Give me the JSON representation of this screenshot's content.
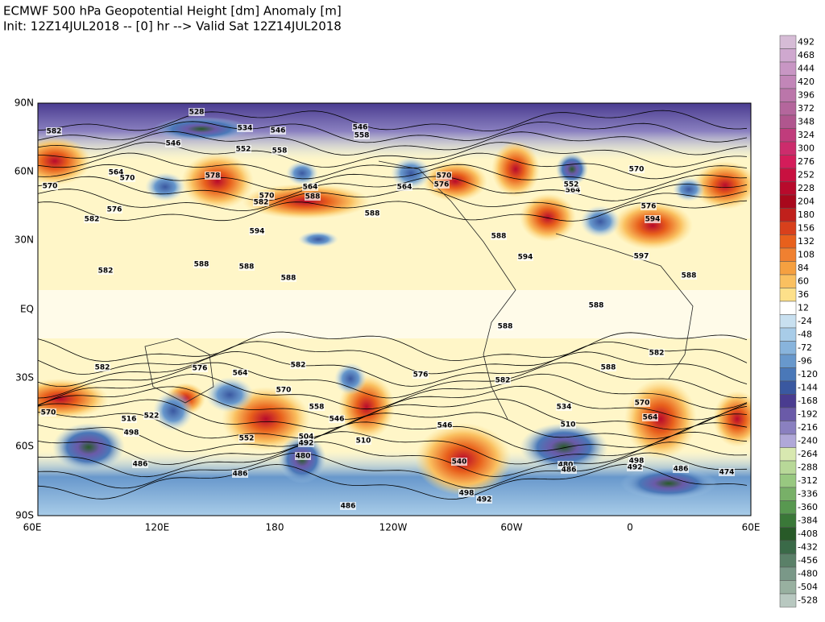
{
  "header": {
    "title": "ECMWF 500 hPa Geopotential Height [dm] Anomaly [m]",
    "subtitle": "Init: 12Z14JUL2018 -- [0] hr --> Valid Sat 12Z14JUL2018"
  },
  "map": {
    "lon_labels": [
      "60E",
      "120E",
      "180",
      "120W",
      "60W",
      "0",
      "60E"
    ],
    "lat_labels": [
      "90N",
      "60N",
      "30N",
      "EQ",
      "30S",
      "60S",
      "90S"
    ],
    "contour_labels": [
      528,
      534,
      546,
      546,
      558,
      552,
      558,
      546,
      564,
      570,
      582,
      570,
      576,
      582,
      578,
      570,
      582,
      588,
      588,
      594,
      564,
      570,
      564,
      576,
      588,
      594,
      588,
      588,
      582,
      588,
      588,
      588,
      582,
      582,
      576,
      582,
      588,
      582,
      576,
      564,
      570,
      558,
      546,
      552,
      546,
      540,
      534,
      510,
      570,
      564,
      498,
      492,
      486,
      474,
      486,
      492,
      498,
      486,
      480,
      504,
      492,
      510,
      516,
      498,
      486,
      522,
      570,
      480,
      486,
      564,
      552,
      570,
      588,
      597,
      594,
      576
    ]
  },
  "colorbar": {
    "labels": [
      492,
      468,
      444,
      420,
      396,
      372,
      348,
      324,
      300,
      276,
      252,
      228,
      204,
      180,
      156,
      132,
      108,
      84,
      60,
      36,
      12,
      -24,
      -48,
      -72,
      -96,
      -120,
      -144,
      -168,
      -192,
      -216,
      -240,
      -264,
      -288,
      -312,
      -336,
      -360,
      -384,
      -408,
      -432,
      -456,
      -480,
      -504,
      -528
    ],
    "colors": [
      "#d6bcd6",
      "#cfa8cf",
      "#c896c4",
      "#c286b8",
      "#bb76aa",
      "#b4669c",
      "#b0568e",
      "#c03c7c",
      "#cc2c6c",
      "#d41c5a",
      "#c81040",
      "#b80a2c",
      "#a8081c",
      "#c0201c",
      "#d8401c",
      "#e8601c",
      "#f08030",
      "#f5a040",
      "#fac060",
      "#fde08a",
      "#ffffff",
      "#c8e0f0",
      "#a8cce8",
      "#88b4dc",
      "#6898cc",
      "#4a78b8",
      "#3a58a0",
      "#4a3c90",
      "#6a5aa8",
      "#8a80c0",
      "#b0a8d8",
      "#d8e8b0",
      "#b8d898",
      "#98c880",
      "#78b068",
      "#589850",
      "#3a7838",
      "#285a28",
      "#3a6a48",
      "#5a8068",
      "#7a9888",
      "#98b0a0",
      "#b8c8c0"
    ]
  }
}
